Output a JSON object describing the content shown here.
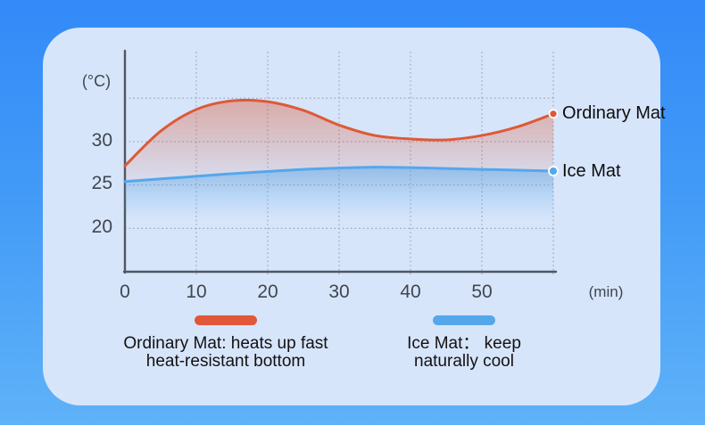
{
  "chart_data": {
    "type": "area",
    "x_unit_label": "(min)",
    "y_unit_label": "(°C)",
    "x_tick_labels": [
      "0",
      "10",
      "20",
      "30",
      "40",
      "50"
    ],
    "y_tick_labels": [
      "30",
      "25",
      "20"
    ],
    "x_range": [
      0,
      60
    ],
    "y_range": [
      15,
      35
    ],
    "grid": {
      "x_values": [
        10,
        20,
        30,
        40,
        50,
        60
      ],
      "y_values": [
        20,
        25,
        30,
        35
      ]
    },
    "legend_position": "bottom",
    "x": [
      0,
      5,
      10,
      15,
      20,
      25,
      30,
      35,
      40,
      45,
      50,
      55,
      60
    ],
    "series": [
      {
        "name": "Ordinary Mat",
        "color": "#dd5a38",
        "values": [
          27.2,
          31.2,
          33.7,
          34.7,
          34.6,
          33.6,
          31.9,
          30.7,
          30.3,
          30.2,
          30.7,
          31.7,
          33.2
        ]
      },
      {
        "name": "Ice Mat",
        "color": "#55a7ec",
        "values": [
          25.4,
          25.7,
          26.0,
          26.3,
          26.55,
          26.8,
          26.95,
          27.05,
          27.0,
          26.9,
          26.8,
          26.7,
          26.6
        ]
      }
    ]
  },
  "legend": {
    "items": [
      {
        "swatch_color": "#e0573a",
        "line1": "Ordinary Mat: heats up fast",
        "line2": "heat-resistant bottom"
      },
      {
        "swatch_color": "#55a7ec",
        "line1": "Ice Mat： keep",
        "line2": "naturally cool"
      }
    ]
  }
}
